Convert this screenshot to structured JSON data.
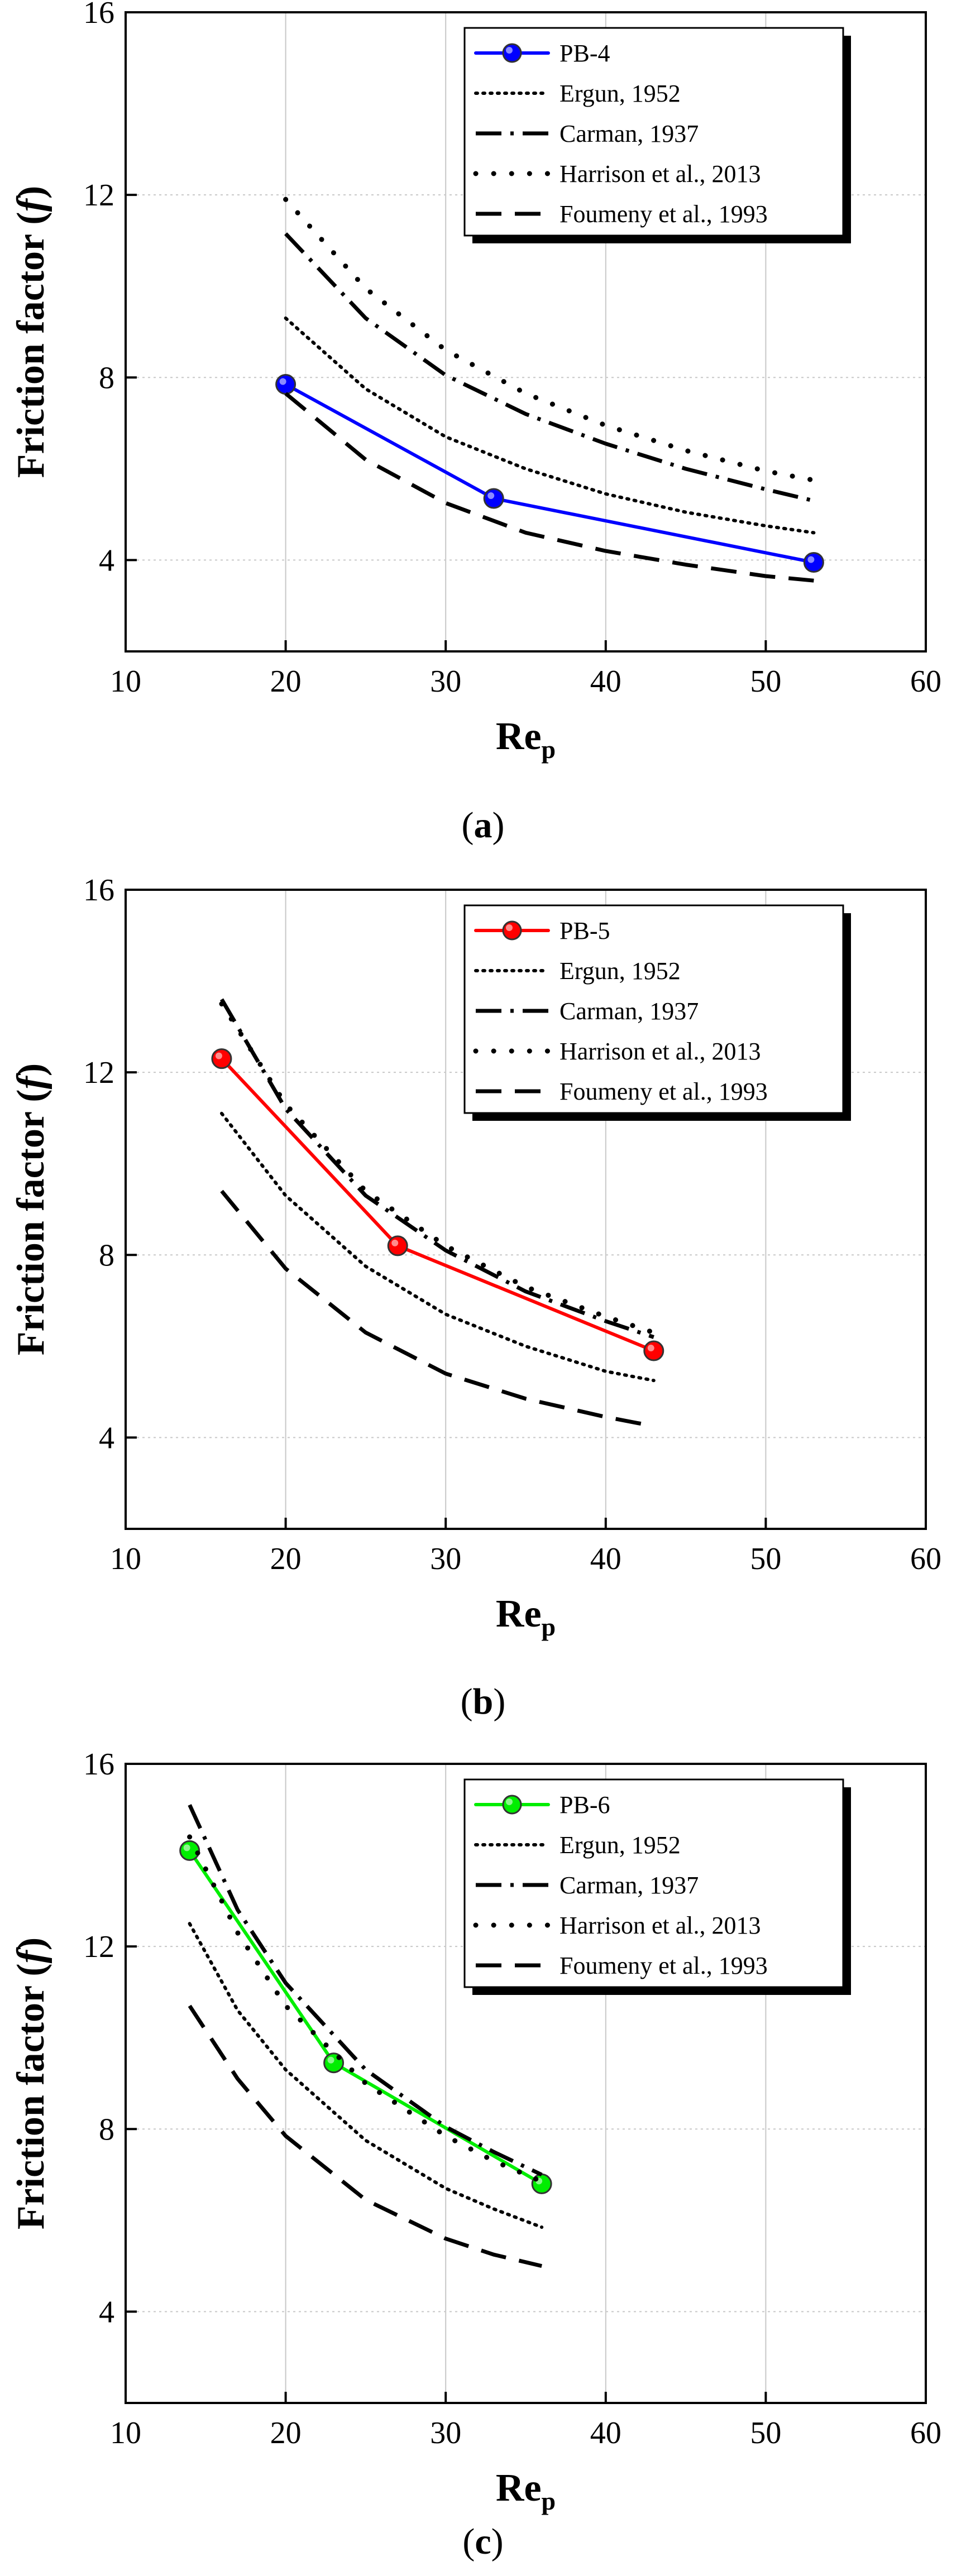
{
  "figure": {
    "panels": [
      {
        "caption": "(a)",
        "caption_paren_open": "(",
        "caption_letter": "a",
        "caption_paren_close": ")",
        "color": "#0000ff",
        "legend": [
          "PB-4",
          "Ergun, 1952",
          "Carman, 1937",
          "Harrison et al., 2013",
          "Foumeny et al., 1993"
        ]
      },
      {
        "caption": "(b)",
        "caption_paren_open": "(",
        "caption_letter": "b",
        "caption_paren_close": ")",
        "color": "#ff0000",
        "legend": [
          "PB-5",
          "Ergun, 1952",
          "Carman, 1937",
          "Harrison et al., 2013",
          "Foumeny et al., 1993"
        ]
      },
      {
        "caption": "(c)",
        "caption_paren_open": "(",
        "caption_letter": "c",
        "caption_paren_close": ")",
        "color": "#00ee00",
        "legend": [
          "PB-6",
          "Ergun, 1952",
          "Carman, 1937",
          "Harrison et al., 2013",
          "Foumeny et al., 1993"
        ]
      }
    ]
  },
  "chart_data": [
    {
      "type": "line",
      "title": "",
      "xlabel_main": "Re",
      "xlabel_sub": "p",
      "ylabel_prefix": "Friction factor (",
      "ylabel_italic": "f",
      "ylabel_suffix": ")",
      "xlim": [
        10,
        60
      ],
      "ylim": [
        2,
        16
      ],
      "xticks": [
        10,
        20,
        30,
        40,
        50,
        60
      ],
      "yticks": [
        4,
        8,
        12,
        16
      ],
      "grid": true,
      "legend_position": "top-right",
      "series": [
        {
          "name": "PB-4",
          "style": "solid-marker",
          "color": "#0000ff",
          "x": [
            20,
            33,
            53
          ],
          "y": [
            7.85,
            5.35,
            3.95
          ]
        },
        {
          "name": "Ergun, 1952",
          "style": "dotted",
          "x": [
            20,
            25,
            30,
            35,
            40,
            45,
            50,
            53
          ],
          "y": [
            9.3,
            7.75,
            6.7,
            6.0,
            5.45,
            5.05,
            4.75,
            4.6
          ]
        },
        {
          "name": "Carman, 1937",
          "style": "dashdot",
          "x": [
            20,
            25,
            30,
            35,
            40,
            45,
            50,
            53
          ],
          "y": [
            11.15,
            9.3,
            8.05,
            7.2,
            6.55,
            6.0,
            5.55,
            5.3
          ]
        },
        {
          "name": "Harrison et al., 2013",
          "style": "sparse-dots",
          "x": [
            20,
            25,
            30,
            35,
            40,
            45,
            50,
            53
          ],
          "y": [
            11.9,
            9.95,
            8.6,
            7.65,
            6.95,
            6.4,
            5.95,
            5.75
          ]
        },
        {
          "name": "Foumeny et al., 1993",
          "style": "dashed",
          "x": [
            20,
            25,
            30,
            35,
            40,
            45,
            50,
            53
          ],
          "y": [
            7.65,
            6.2,
            5.25,
            4.6,
            4.2,
            3.9,
            3.65,
            3.55
          ]
        }
      ]
    },
    {
      "type": "line",
      "title": "",
      "xlabel_main": "Re",
      "xlabel_sub": "p",
      "ylabel_prefix": "Friction factor (",
      "ylabel_italic": "f",
      "ylabel_suffix": ")",
      "xlim": [
        10,
        60
      ],
      "ylim": [
        2,
        16
      ],
      "xticks": [
        10,
        20,
        30,
        40,
        50,
        60
      ],
      "yticks": [
        4,
        8,
        12,
        16
      ],
      "grid": true,
      "legend_position": "top-right",
      "series": [
        {
          "name": "PB-5",
          "style": "solid-marker",
          "color": "#ff0000",
          "x": [
            16,
            27,
            43
          ],
          "y": [
            12.3,
            8.2,
            5.9
          ]
        },
        {
          "name": "Ergun, 1952",
          "style": "dotted",
          "x": [
            16,
            20,
            25,
            30,
            35,
            40,
            43
          ],
          "y": [
            11.1,
            9.3,
            7.75,
            6.7,
            6.0,
            5.45,
            5.25
          ]
        },
        {
          "name": "Carman, 1937",
          "style": "dashdot",
          "x": [
            16,
            20,
            25,
            30,
            35,
            40,
            43
          ],
          "y": [
            13.6,
            11.2,
            9.3,
            8.1,
            7.2,
            6.55,
            6.2
          ]
        },
        {
          "name": "Harrison et al., 2013",
          "style": "sparse-dots",
          "x": [
            16,
            20,
            25,
            30,
            35,
            40,
            43
          ],
          "y": [
            13.5,
            11.3,
            9.4,
            8.2,
            7.3,
            6.65,
            6.3
          ]
        },
        {
          "name": "Foumeny et al., 1993",
          "style": "dashed",
          "x": [
            16,
            20,
            25,
            30,
            35,
            40,
            43
          ],
          "y": [
            9.4,
            7.7,
            6.3,
            5.4,
            4.85,
            4.45,
            4.25
          ]
        }
      ]
    },
    {
      "type": "line",
      "title": "",
      "xlabel_main": "Re",
      "xlabel_sub": "p",
      "ylabel_prefix": "Friction factor (",
      "ylabel_italic": "f",
      "ylabel_suffix": ")",
      "xlim": [
        10,
        60
      ],
      "ylim": [
        2,
        16
      ],
      "xticks": [
        10,
        20,
        30,
        40,
        50,
        60
      ],
      "yticks": [
        4,
        8,
        12,
        16
      ],
      "grid": true,
      "legend_position": "top-right",
      "series": [
        {
          "name": "PB-6",
          "style": "solid-marker",
          "color": "#00ee00",
          "x": [
            14,
            23,
            36
          ],
          "y": [
            14.1,
            9.45,
            6.8
          ]
        },
        {
          "name": "Ergun, 1952",
          "style": "dotted",
          "x": [
            14,
            17,
            20,
            25,
            30,
            33,
            36
          ],
          "y": [
            12.5,
            10.6,
            9.3,
            7.75,
            6.7,
            6.25,
            5.85
          ]
        },
        {
          "name": "Carman, 1937",
          "style": "dashdot",
          "x": [
            14,
            17,
            20,
            25,
            30,
            33,
            36
          ],
          "y": [
            15.1,
            12.8,
            11.2,
            9.3,
            8.05,
            7.5,
            7.0
          ]
        },
        {
          "name": "Harrison et al., 2013",
          "style": "sparse-dots",
          "x": [
            14,
            17,
            20,
            25,
            30,
            33,
            36
          ],
          "y": [
            14.4,
            12.3,
            10.7,
            9.0,
            7.85,
            7.3,
            6.85
          ]
        },
        {
          "name": "Foumeny et al., 1993",
          "style": "dashed",
          "x": [
            14,
            17,
            20,
            25,
            30,
            33,
            36
          ],
          "y": [
            10.7,
            9.1,
            7.85,
            6.45,
            5.6,
            5.25,
            5.0
          ]
        }
      ]
    }
  ]
}
